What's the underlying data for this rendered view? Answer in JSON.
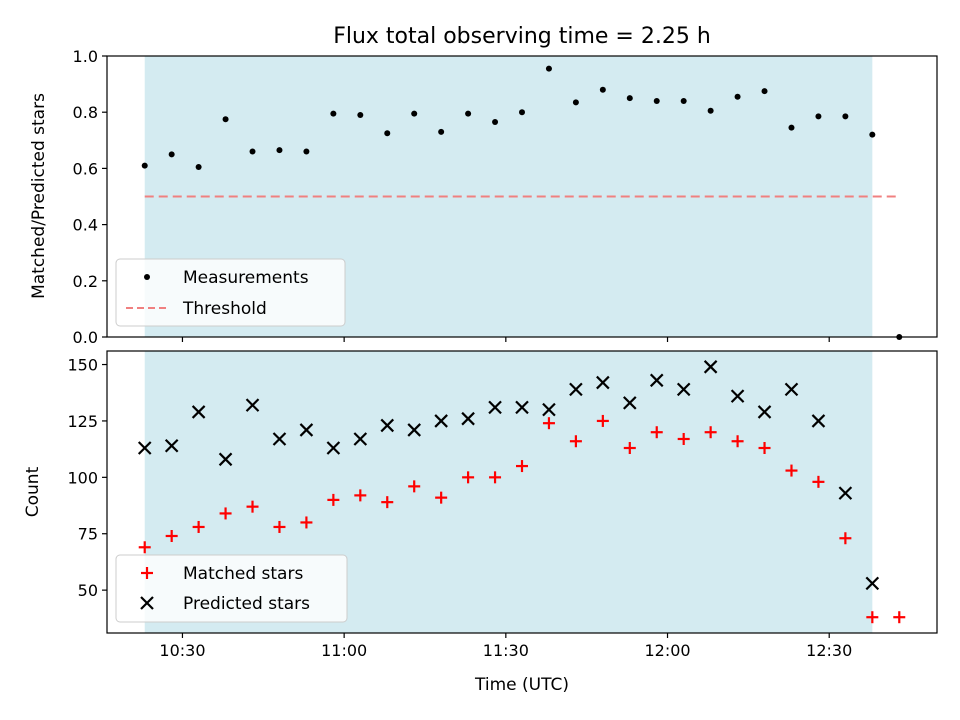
{
  "colors": {
    "shade": "#d4ebf1",
    "threshold": "#f08080",
    "measure": "#000000",
    "matched": "#ff0000",
    "predicted": "#000000"
  },
  "chart_data": [
    {
      "type": "scatter",
      "title": "Flux total observing time = 2.25 h",
      "xlabel": "",
      "ylabel": "Matched/Predicted stars",
      "ylim": [
        0.0,
        1.0
      ],
      "yticks": [
        0.0,
        0.2,
        0.4,
        0.6,
        0.8,
        1.0
      ],
      "ytick_labels": [
        "0.0",
        "0.2",
        "0.4",
        "0.6",
        "0.8",
        "1.0"
      ],
      "shaded_range_min": [
        623,
        758
      ],
      "legend_position": "lower-left",
      "series": [
        {
          "name": "Measurements",
          "marker": "dot",
          "x_min": [
            623,
            628,
            633,
            638,
            643,
            648,
            653,
            658,
            663,
            668,
            673,
            678,
            683,
            688,
            693,
            698,
            703,
            708,
            713,
            718,
            723,
            728,
            733,
            738,
            743,
            748,
            753,
            758,
            763
          ],
          "y": [
            0.61,
            0.65,
            0.605,
            0.775,
            0.66,
            0.665,
            0.66,
            0.795,
            0.79,
            0.725,
            0.795,
            0.73,
            0.795,
            0.765,
            0.8,
            0.955,
            0.835,
            0.88,
            0.85,
            0.84,
            0.84,
            0.805,
            0.855,
            0.875,
            0.745,
            0.785,
            0.785,
            0.72,
            0.0
          ]
        },
        {
          "name": "Threshold",
          "style": "dashed",
          "x_min": [
            623,
            763
          ],
          "y": [
            0.5,
            0.5
          ]
        }
      ]
    },
    {
      "type": "scatter",
      "xlabel": "Time (UTC)",
      "ylabel": "Count",
      "ylim": [
        31,
        156
      ],
      "yticks": [
        50,
        75,
        100,
        125,
        150
      ],
      "ytick_labels": [
        "50",
        "75",
        "100",
        "125",
        "150"
      ],
      "xlim_min": [
        616,
        770
      ],
      "xticks_min": [
        630,
        660,
        690,
        720,
        750
      ],
      "xtick_labels": [
        "10:30",
        "11:00",
        "11:30",
        "12:00",
        "12:30"
      ],
      "shaded_range_min": [
        623,
        758
      ],
      "legend_position": "lower-left",
      "series": [
        {
          "name": "Matched stars",
          "marker": "plus",
          "x_min": [
            623,
            628,
            633,
            638,
            643,
            648,
            653,
            658,
            663,
            668,
            673,
            678,
            683,
            688,
            693,
            698,
            703,
            708,
            713,
            718,
            723,
            728,
            733,
            738,
            743,
            748,
            753,
            758,
            763
          ],
          "y": [
            69,
            74,
            78,
            84,
            87,
            78,
            80,
            90,
            92,
            89,
            96,
            91,
            100,
            100,
            105,
            124,
            116,
            125,
            113,
            120,
            117,
            120,
            116,
            113,
            103,
            98,
            73,
            38,
            38
          ]
        },
        {
          "name": "Predicted stars",
          "marker": "x",
          "x_min": [
            623,
            628,
            633,
            638,
            643,
            648,
            653,
            658,
            663,
            668,
            673,
            678,
            683,
            688,
            693,
            698,
            703,
            708,
            713,
            718,
            723,
            728,
            733,
            738,
            743,
            748,
            753,
            758
          ],
          "y": [
            113,
            114,
            129,
            108,
            132,
            117,
            121,
            113,
            117,
            123,
            121,
            125,
            126,
            131,
            131,
            130,
            139,
            142,
            133,
            143,
            139,
            149,
            136,
            129,
            139,
            125,
            93,
            53
          ]
        }
      ]
    }
  ]
}
